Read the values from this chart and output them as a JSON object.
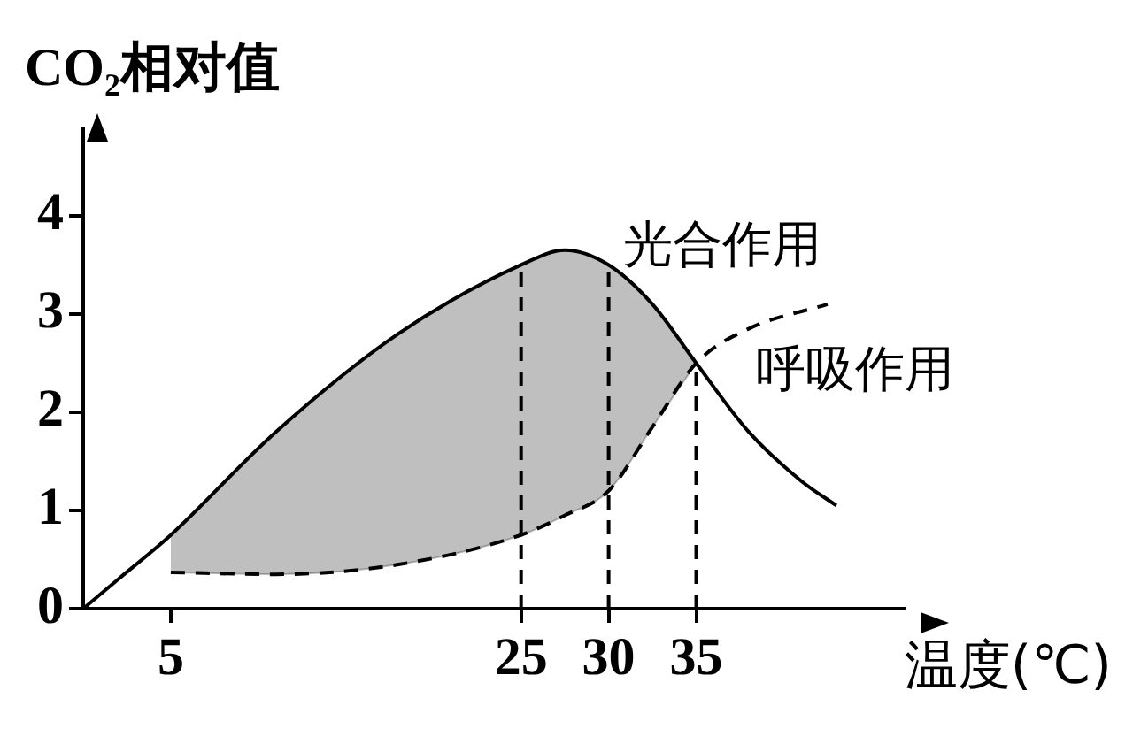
{
  "chart_data": {
    "type": "line",
    "ylabel": "CO₂相对值",
    "xlabel": "温度(℃)",
    "series": [
      {
        "name": "光合作用",
        "color": "#000000",
        "line_style": "solid",
        "x": [
          0,
          2,
          5,
          11,
          18,
          25,
          27.5,
          30,
          32.5,
          35,
          38,
          41,
          43
        ],
        "values": [
          0,
          0.3,
          0.75,
          1.8,
          2.8,
          3.5,
          3.65,
          3.5,
          3.1,
          2.5,
          1.8,
          1.3,
          1.05
        ],
        "lower": [
          null,
          null,
          0.37,
          0.35,
          0.45,
          0.75,
          0.95,
          1.2,
          1.85,
          2.5,
          null,
          null,
          null
        ],
        "upper": [
          null,
          null,
          0.75,
          1.8,
          2.8,
          3.5,
          3.65,
          3.5,
          3.1,
          2.5,
          null,
          null,
          null
        ]
      },
      {
        "name": "呼吸作用",
        "color": "#000000",
        "line_style": "dashed",
        "x": [
          5,
          11,
          18,
          25,
          27.5,
          30,
          32.5,
          35,
          38,
          42.5
        ],
        "values": [
          0.37,
          0.35,
          0.45,
          0.75,
          0.95,
          1.2,
          1.85,
          2.5,
          2.85,
          3.1
        ]
      }
    ],
    "xlim": [
      0,
      47
    ],
    "xticks": [
      5,
      25,
      30,
      35
    ],
    "ylim": [
      0,
      4.9
    ],
    "yticks": [
      0,
      1,
      2,
      3,
      4
    ],
    "ref_lines": [
      {
        "axis": "x",
        "value": 25,
        "line_style": "dashed"
      },
      {
        "axis": "x",
        "value": 30,
        "line_style": "dashed"
      },
      {
        "axis": "x",
        "value": 35,
        "line_style": "dashed"
      }
    ],
    "grid": false,
    "legend": false,
    "marker": "none"
  }
}
